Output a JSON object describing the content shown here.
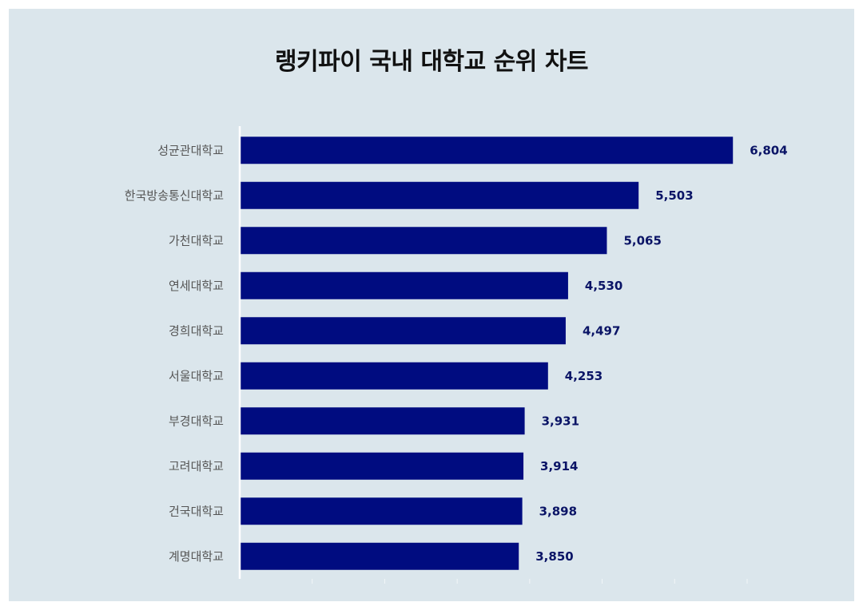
{
  "chart_data": {
    "type": "bar",
    "orientation": "horizontal",
    "title": "랭키파이 국내 대학교 순위 차트",
    "categories": [
      "성균관대학교",
      "한국방송통신대학교",
      "가천대학교",
      "연세대학교",
      "경희대학교",
      "서울대학교",
      "부경대학교",
      "고려대학교",
      "건국대학교",
      "계명대학교"
    ],
    "values": [
      6804,
      5503,
      5065,
      4530,
      4497,
      4253,
      3931,
      3914,
      3898,
      3850
    ],
    "value_labels": [
      "6,804",
      "5,503",
      "5,065",
      "4,530",
      "4,497",
      "4,253",
      "3,931",
      "3,914",
      "3,898",
      "3,850"
    ],
    "xlim": [
      0,
      7000
    ],
    "xlabel": "",
    "ylabel": "",
    "grid": false,
    "legend": "none",
    "bar_color": "#000c80",
    "background_color": "#dbe6ec"
  }
}
